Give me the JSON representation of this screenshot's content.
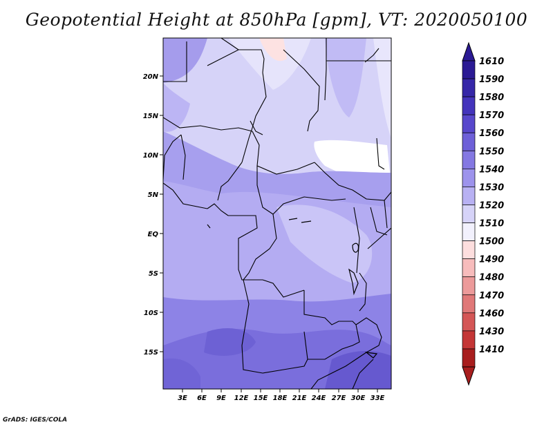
{
  "title": "Geopotential Height at 850hPa [gpm], VT: 2020050100",
  "footer": "GrADS: IGES/COLA",
  "map": {
    "lat_labels": [
      "20N",
      "15N",
      "10N",
      "5N",
      "EQ",
      "5S",
      "10S",
      "15S"
    ],
    "lon_labels": [
      "3E",
      "6E",
      "9E",
      "12E",
      "15E",
      "18E",
      "21E",
      "24E",
      "27E",
      "30E",
      "33E"
    ]
  },
  "colorbar": {
    "levels": [
      "1610",
      "1590",
      "1580",
      "1570",
      "1560",
      "1550",
      "1540",
      "1530",
      "1520",
      "1510",
      "1500",
      "1490",
      "1480",
      "1470",
      "1460",
      "1430",
      "1410"
    ],
    "colors": [
      "#2b1a94",
      "#3627a8",
      "#4434bc",
      "#5847cc",
      "#6e60d8",
      "#8478e2",
      "#9d93ec",
      "#b8b1f3",
      "#d6d3f8",
      "#f2f1fd",
      "#fddede",
      "#f7bcbc",
      "#ec9a9a",
      "#e07878",
      "#d45656",
      "#c43636",
      "#a81e1e"
    ]
  }
}
